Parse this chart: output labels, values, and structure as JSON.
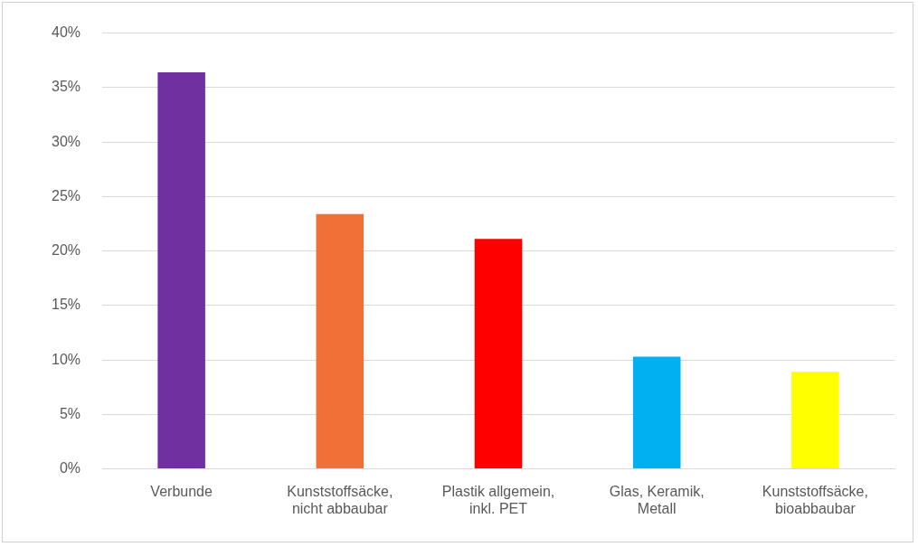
{
  "chart_data": {
    "type": "bar",
    "categories": [
      "Verbunde",
      "Kunststoffsäcke, nicht abbaubar",
      "Plastik allgemein, inkl. PET",
      "Glas, Keramik, Metall",
      "Kunststoffsäcke, bioabbaubar"
    ],
    "values": [
      36.4,
      23.4,
      21.1,
      10.3,
      8.9
    ],
    "colors": [
      "#7030a0",
      "#f07038",
      "#ff0000",
      "#00b0f0",
      "#ffff00"
    ],
    "ylim": [
      0,
      40
    ],
    "yticks": [
      {
        "value": 0,
        "label": "0%"
      },
      {
        "value": 5,
        "label": "5%"
      },
      {
        "value": 10,
        "label": "10%"
      },
      {
        "value": 15,
        "label": "15%"
      },
      {
        "value": 20,
        "label": "20%"
      },
      {
        "value": 25,
        "label": "25%"
      },
      {
        "value": 30,
        "label": "30%"
      },
      {
        "value": 35,
        "label": "35%"
      },
      {
        "value": 40,
        "label": "40%"
      }
    ],
    "grid": "y",
    "legend": false
  }
}
